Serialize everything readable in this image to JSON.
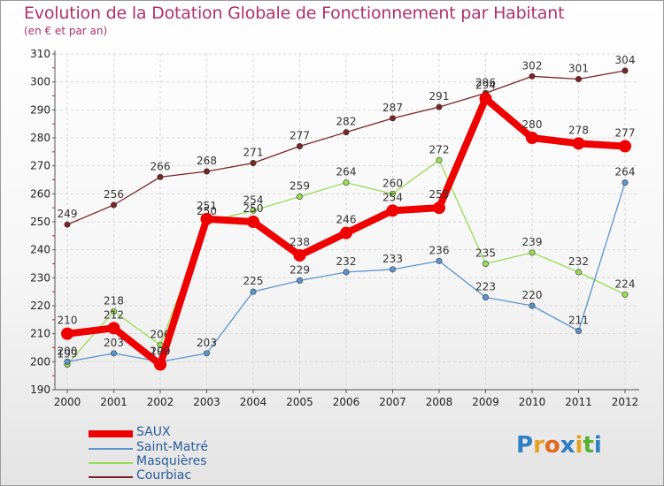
{
  "chart_data": {
    "type": "line",
    "title": "Evolution de la Dotation Globale de Fonctionnement par Habitant",
    "subtitle": "(en € et par an)",
    "categories": [
      "2000",
      "2001",
      "2002",
      "2003",
      "2004",
      "2005",
      "2006",
      "2007",
      "2008",
      "2009",
      "2010",
      "2011",
      "2012"
    ],
    "yticks": [
      190,
      200,
      210,
      220,
      230,
      240,
      250,
      260,
      270,
      280,
      290,
      300,
      310
    ],
    "ylim": [
      190,
      310
    ],
    "series": [
      {
        "name": "Courbiac",
        "color": "#7a2424",
        "values": [
          249,
          256,
          266,
          268,
          271,
          277,
          282,
          287,
          291,
          296,
          302,
          301,
          304
        ]
      },
      {
        "name": "Masquières",
        "color": "#99dd55",
        "values": [
          199,
          218,
          206,
          250,
          254,
          259,
          264,
          260,
          272,
          235,
          239,
          232,
          224
        ]
      },
      {
        "name": "Saint-Matré",
        "color": "#5b95cc",
        "values": [
          200,
          203,
          200,
          203,
          225,
          229,
          232,
          233,
          236,
          223,
          220,
          211,
          264
        ]
      },
      {
        "name": "SAUX",
        "color": "#ee0000",
        "values": [
          210,
          212,
          199,
          251,
          250,
          238,
          246,
          254,
          255,
          294,
          280,
          278,
          277
        ]
      }
    ],
    "legend": [
      "SAUX",
      "Saint-Matré",
      "Masquières",
      "Courbiac"
    ]
  },
  "logo": {
    "text": "Proxiti",
    "letters": [
      "P",
      "r",
      "o",
      "x",
      "i",
      "t",
      "i"
    ]
  }
}
